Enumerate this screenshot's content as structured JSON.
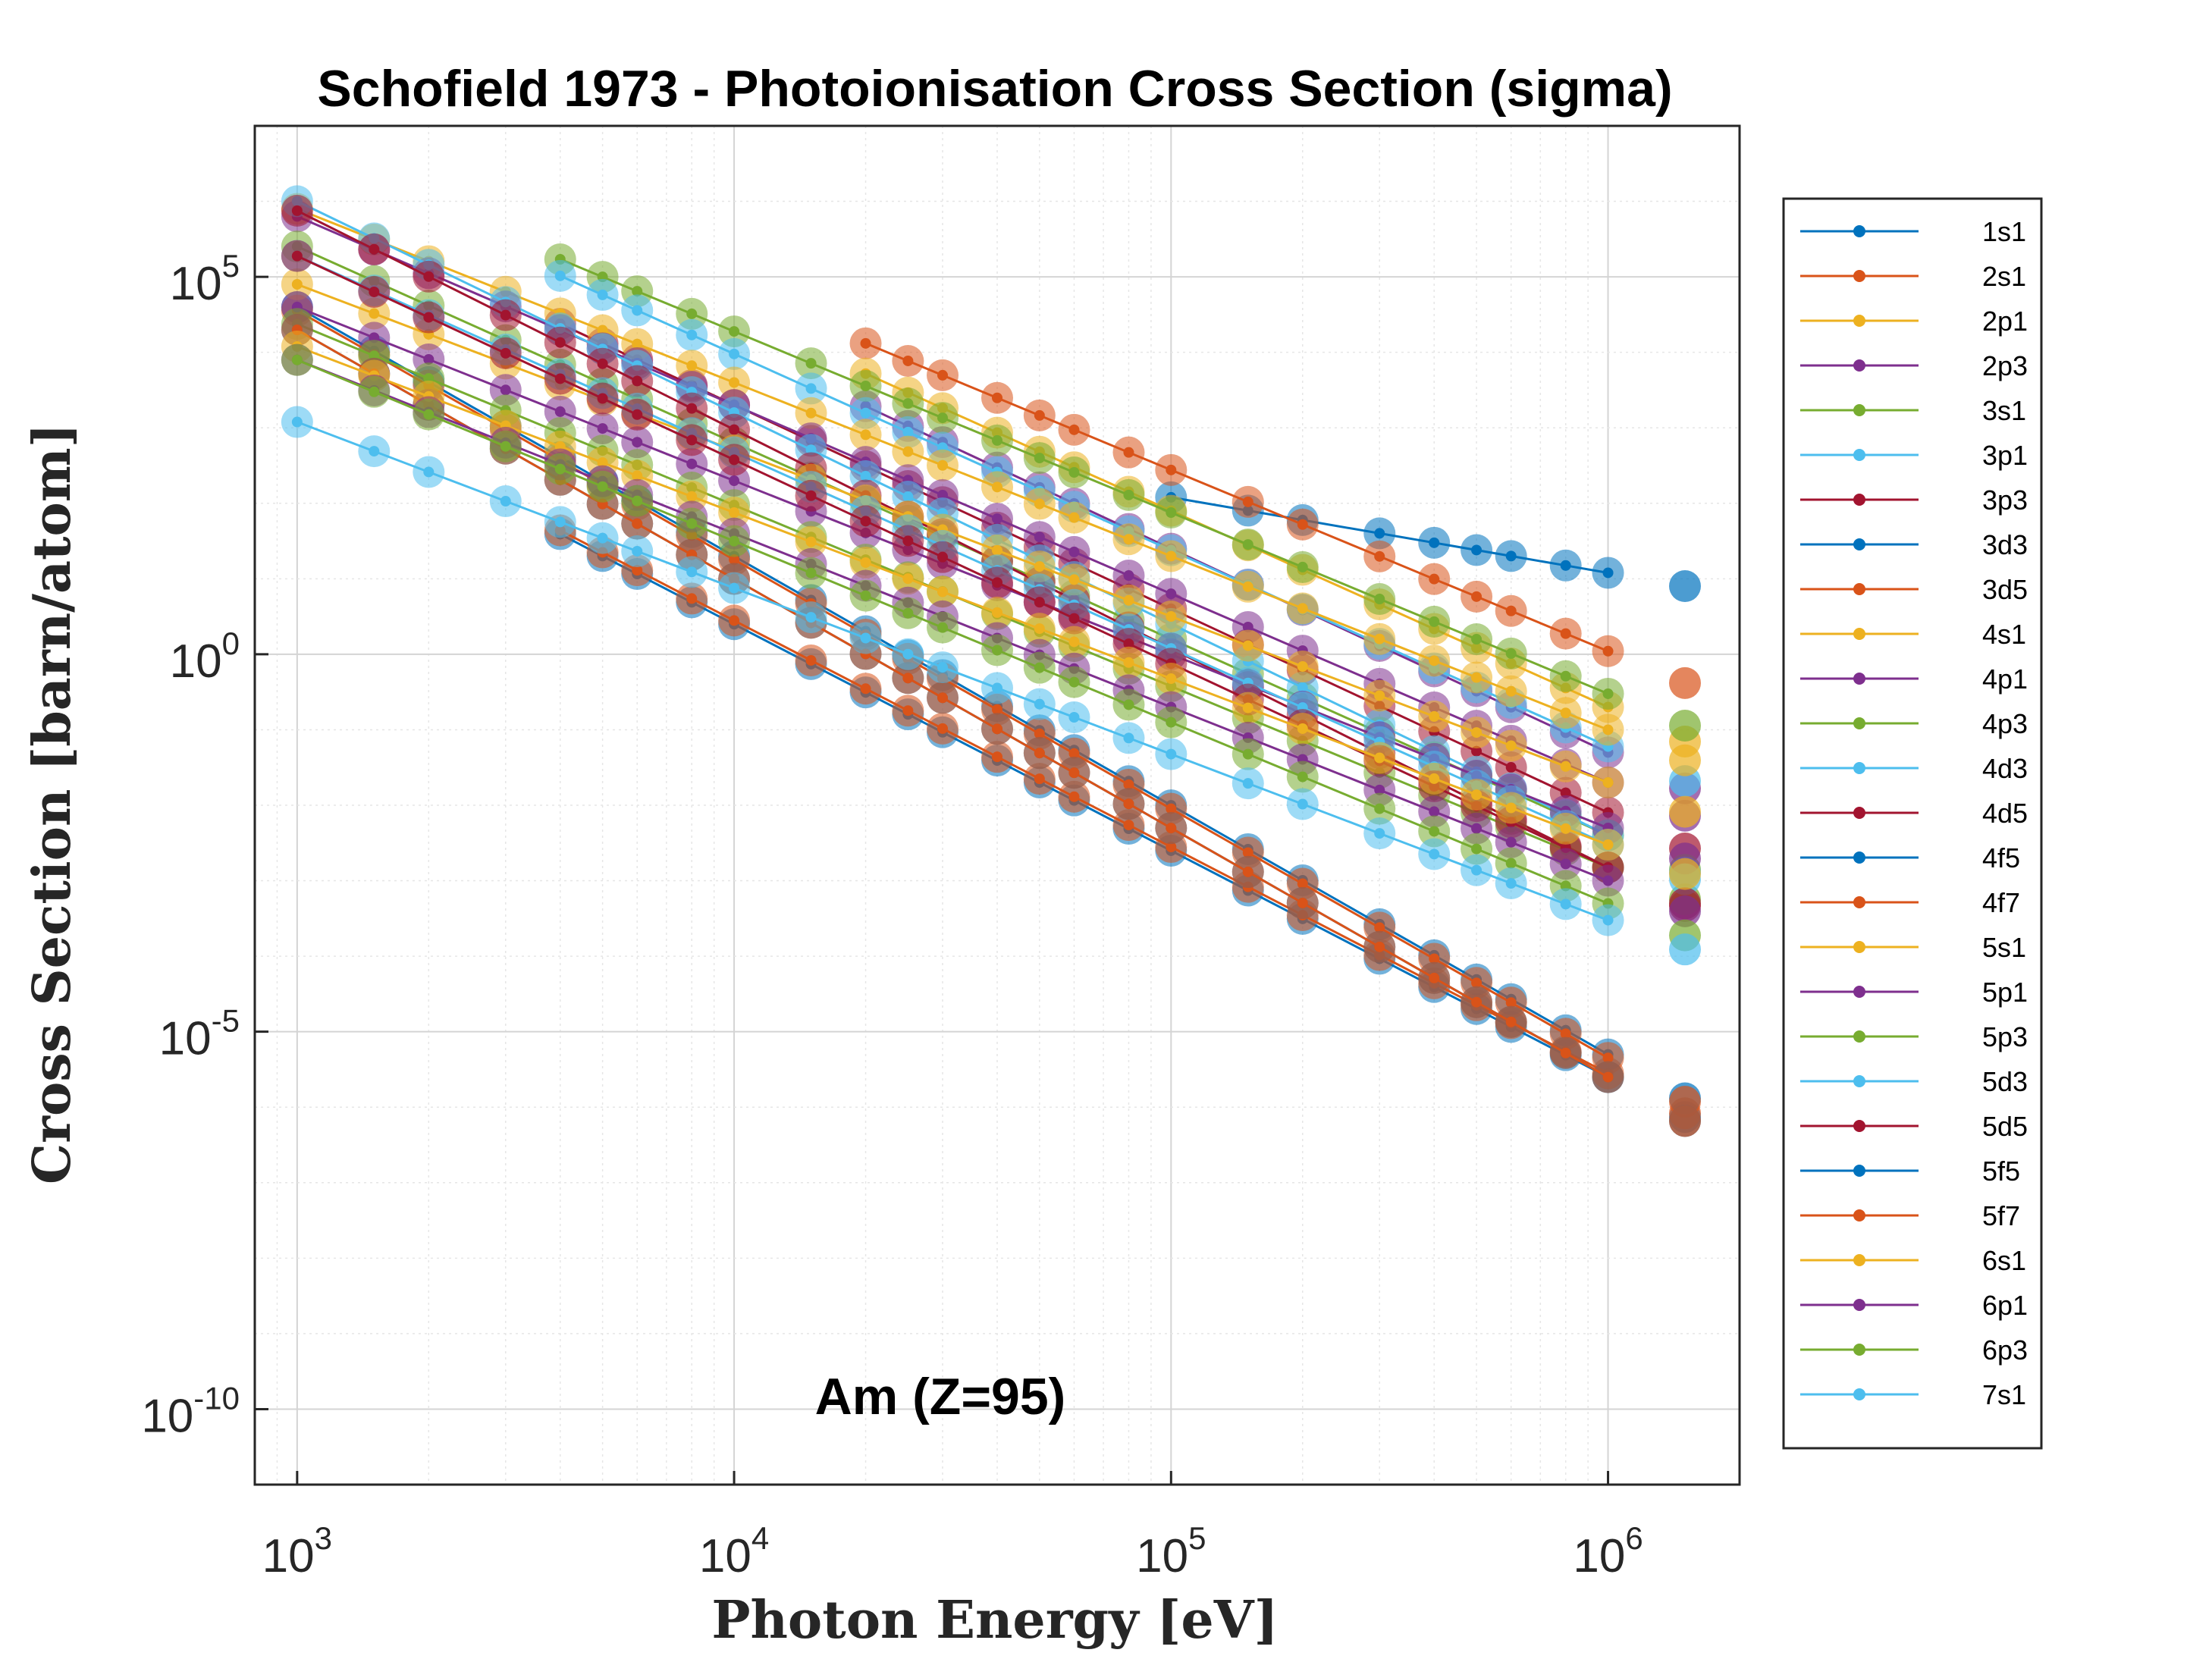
{
  "chart_data": {
    "type": "scatter",
    "title": "Schofield 1973 - Photoionisation Cross Section (sigma)",
    "xlabel": "Photon Energy [eV]",
    "ylabel": "Cross Section [barn/atom]",
    "annotation": "Am (Z=95)",
    "x_scale": "log",
    "y_scale": "log",
    "xlim": [
      800,
      2000000
    ],
    "ylim": [
      1e-11,
      10000000.0
    ],
    "x_ticks": [
      {
        "base": "10",
        "exp": "3"
      },
      {
        "base": "10",
        "exp": "4"
      },
      {
        "base": "10",
        "exp": "5"
      },
      {
        "base": "10",
        "exp": "6"
      }
    ],
    "y_ticks": [
      {
        "base": "10",
        "exp": "5"
      },
      {
        "base": "10",
        "exp": "0"
      },
      {
        "base": "10",
        "exp": "-5"
      },
      {
        "base": "10",
        "exp": "-10"
      }
    ],
    "grid": true,
    "legend_position": "right-outside",
    "energies": [
      1000,
      1500,
      2000,
      3000,
      4000,
      5000,
      6000,
      8000,
      10000,
      15000,
      20000,
      25000,
      30000,
      40000,
      50000,
      60000,
      80000,
      100000,
      150000,
      200000,
      300000,
      400000,
      500000,
      600000,
      800000,
      1000000
    ],
    "extra_energy": 1500000,
    "series": [
      {
        "name": "1s1",
        "color": "#0072bd",
        "start": 100000,
        "y1000": 100,
        "slope": -1.0,
        "anchor": 1000000,
        "anchor_y": 12
      },
      {
        "name": "2s1",
        "color": "#d95319",
        "start": 20000,
        "y1000": 5,
        "slope": -2.4,
        "anchor": 1000000,
        "anchor_y": 1.1
      },
      {
        "name": "2p1",
        "color": "#edb120",
        "start": 20000,
        "y1000": 3,
        "slope": -2.6,
        "anchor": 1000000,
        "anchor_y": 0.2
      },
      {
        "name": "2p3",
        "color": "#7e2f8e",
        "start": 20000,
        "y1000": 2,
        "slope": -2.7,
        "anchor": 1000000,
        "anchor_y": 0.05
      },
      {
        "name": "3s1",
        "color": "#77ac30",
        "start": 4000,
        "y1000": 1,
        "slope": -2.4,
        "anchor": 1000000,
        "anchor_y": 0.3
      },
      {
        "name": "3p1",
        "color": "#4dbeee",
        "start": 4000,
        "y1000": 1,
        "slope": -2.6,
        "anchor": 1000000,
        "anchor_y": 0.06
      },
      {
        "name": "3p3",
        "color": "#a2142f",
        "start": 4000,
        "y1000": 1,
        "slope": -2.7,
        "anchor": 1000000,
        "anchor_y": 0.008
      },
      {
        "name": "3d3",
        "color": "#0072bd",
        "start": 4000,
        "y1000": 1,
        "slope": -3.0,
        "anchor": 1000000,
        "anchor_y": 2.5e-06
      },
      {
        "name": "3d5",
        "color": "#d95319",
        "start": 4000,
        "y1000": 1,
        "slope": -3.0,
        "anchor": 1000000,
        "anchor_y": 2.8e-06
      },
      {
        "name": "4s1",
        "color": "#edb120",
        "start": 1000,
        "y1000": 60000,
        "slope": -2.3,
        "anchor": 1000000,
        "anchor_y": 0.1
      },
      {
        "name": "4p1",
        "color": "#7e2f8e",
        "start": 1000,
        "y1000": 40000,
        "slope": -2.5,
        "anchor": 1000000,
        "anchor_y": 0.02
      },
      {
        "name": "4p3",
        "color": "#77ac30",
        "start": 1000,
        "y1000": 30000,
        "slope": -2.6,
        "anchor": 1000000,
        "anchor_y": 0.004
      },
      {
        "name": "4d3",
        "color": "#4dbeee",
        "start": 1000,
        "y1000": 50000,
        "slope": -2.8,
        "anchor": 1000000,
        "anchor_y": 0.004
      },
      {
        "name": "4d5",
        "color": "#a2142f",
        "start": 1000,
        "y1000": 60000,
        "slope": -2.9,
        "anchor": 1000000,
        "anchor_y": 0.0015
      },
      {
        "name": "4f5",
        "color": "#0072bd",
        "start": 1000,
        "y1000": 250000,
        "slope": -3.3,
        "anchor": 1000000,
        "anchor_y": 5e-06
      },
      {
        "name": "4f7",
        "color": "#d95319",
        "start": 1000,
        "y1000": 300000,
        "slope": -3.3,
        "anchor": 1000000,
        "anchor_y": 4.5e-06
      },
      {
        "name": "5s1",
        "color": "#edb120",
        "start": 1000,
        "y1000": 20000,
        "slope": -2.2,
        "anchor": 1000000,
        "anchor_y": 0.02
      },
      {
        "name": "5p1",
        "color": "#7e2f8e",
        "start": 1000,
        "y1000": 12000,
        "slope": -2.3,
        "anchor": 1000000,
        "anchor_y": 0.005
      },
      {
        "name": "5p3",
        "color": "#77ac30",
        "start": 1000,
        "y1000": 10000,
        "slope": -2.4,
        "anchor": 1000000,
        "anchor_y": 0.0015
      },
      {
        "name": "5d3",
        "color": "#4dbeee",
        "start": 1000,
        "y1000": 20000,
        "slope": -2.6,
        "anchor": 1000000,
        "anchor_y": 0.003
      },
      {
        "name": "5d5",
        "color": "#a2142f",
        "start": 1000,
        "y1000": 20000,
        "slope": -2.7,
        "anchor": 1000000,
        "anchor_y": 0.0015
      },
      {
        "name": "5f5",
        "color": "#0072bd",
        "start": 1000,
        "y1000": 200000,
        "slope": -3.3,
        "anchor": 1000000,
        "anchor_y": 2.5e-06
      },
      {
        "name": "5f7",
        "color": "#d95319",
        "start": 1000,
        "y1000": 200000,
        "slope": -3.3,
        "anchor": 1000000,
        "anchor_y": 2.5e-06
      },
      {
        "name": "6s1",
        "color": "#edb120",
        "start": 1000,
        "y1000": 3000,
        "slope": -2.2,
        "anchor": 1000000,
        "anchor_y": 0.003
      },
      {
        "name": "6p1",
        "color": "#7e2f8e",
        "start": 1000,
        "y1000": 1500,
        "slope": -2.3,
        "anchor": 1000000,
        "anchor_y": 0.001
      },
      {
        "name": "6p3",
        "color": "#77ac30",
        "start": 1000,
        "y1000": 1000,
        "slope": -2.4,
        "anchor": 1000000,
        "anchor_y": 0.0005
      },
      {
        "name": "7s1",
        "color": "#4dbeee",
        "start": 1000,
        "y1000": 200,
        "slope": -2.2,
        "anchor": 1000000,
        "anchor_y": 0.0003
      }
    ]
  }
}
